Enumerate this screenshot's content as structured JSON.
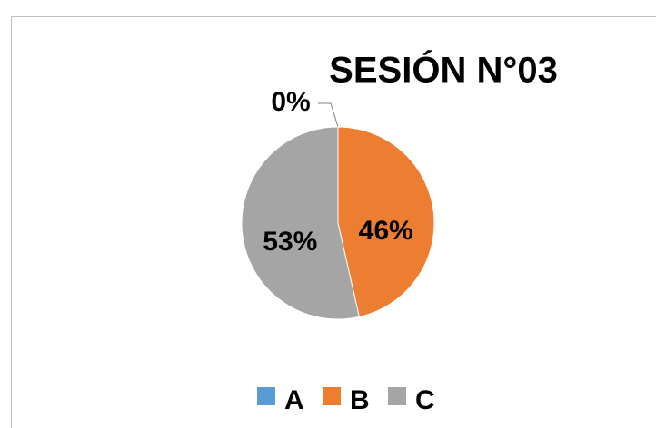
{
  "chart_data": {
    "type": "pie",
    "title": "SESIÓN N°03",
    "categories": [
      "A",
      "B",
      "C"
    ],
    "values": [
      0,
      46,
      53
    ],
    "value_labels": [
      "0%",
      "46%",
      "53%"
    ],
    "colors": [
      "#5b9bd5",
      "#ed7d31",
      "#a5a5a5"
    ],
    "legend": "bottom"
  }
}
